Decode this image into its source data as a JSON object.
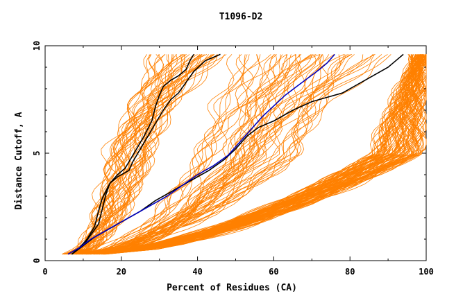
{
  "chart_data": {
    "type": "line",
    "title": "T1096-D2",
    "xlabel": "Percent of Residues (CA)",
    "ylabel": "Distance Cutoff, A",
    "xlim": [
      0,
      100
    ],
    "ylim": [
      0,
      10
    ],
    "x_ticks": [
      0,
      20,
      40,
      60,
      80,
      100
    ],
    "y_ticks": [
      0,
      5,
      10
    ],
    "grid": false,
    "legend": "none",
    "colors": {
      "models": "#ff8000",
      "highlight_black": "#000000",
      "highlight_blue": "#0000c0"
    },
    "highlighted_series": [
      {
        "color": "#000000",
        "points": [
          [
            7,
            0.3
          ],
          [
            9,
            0.6
          ],
          [
            11,
            1.0
          ],
          [
            13,
            1.6
          ],
          [
            14,
            2.3
          ],
          [
            15,
            2.9
          ],
          [
            17,
            3.6
          ],
          [
            19,
            4.0
          ],
          [
            21,
            4.3
          ],
          [
            22,
            4.6
          ],
          [
            24,
            5.2
          ],
          [
            26,
            5.8
          ],
          [
            28,
            6.5
          ],
          [
            29,
            7.2
          ],
          [
            30,
            7.7
          ],
          [
            31,
            8.1
          ],
          [
            33,
            8.4
          ],
          [
            35,
            8.6
          ],
          [
            37,
            8.9
          ],
          [
            38,
            9.3
          ],
          [
            39,
            9.6
          ]
        ]
      },
      {
        "color": "#000000",
        "points": [
          [
            7,
            0.3
          ],
          [
            10,
            0.7
          ],
          [
            12,
            1.2
          ],
          [
            14,
            1.7
          ],
          [
            15,
            2.4
          ],
          [
            16,
            3.1
          ],
          [
            17,
            3.6
          ],
          [
            19,
            3.9
          ],
          [
            21,
            4.1
          ],
          [
            22,
            4.2
          ],
          [
            23,
            4.6
          ],
          [
            25,
            5.2
          ],
          [
            27,
            5.8
          ],
          [
            29,
            6.4
          ],
          [
            31,
            7.0
          ],
          [
            33,
            7.5
          ],
          [
            35,
            7.8
          ],
          [
            37,
            8.3
          ],
          [
            39,
            8.8
          ],
          [
            42,
            9.3
          ],
          [
            46,
            9.6
          ]
        ]
      },
      {
        "color": "#000000",
        "points": [
          [
            7,
            0.3
          ],
          [
            10,
            0.7
          ],
          [
            13,
            1.1
          ],
          [
            17,
            1.5
          ],
          [
            21,
            1.9
          ],
          [
            25,
            2.3
          ],
          [
            29,
            2.8
          ],
          [
            33,
            3.2
          ],
          [
            38,
            3.7
          ],
          [
            43,
            4.2
          ],
          [
            47,
            4.7
          ],
          [
            50,
            5.2
          ],
          [
            53,
            5.8
          ],
          [
            56,
            6.2
          ],
          [
            60,
            6.5
          ],
          [
            65,
            7.0
          ],
          [
            70,
            7.4
          ],
          [
            74,
            7.6
          ],
          [
            78,
            7.8
          ],
          [
            82,
            8.2
          ],
          [
            86,
            8.6
          ],
          [
            90,
            9.0
          ],
          [
            92,
            9.3
          ],
          [
            94,
            9.6
          ]
        ]
      },
      {
        "color": "#0000c0",
        "points": [
          [
            6,
            0.3
          ],
          [
            9,
            0.6
          ],
          [
            12,
            1.0
          ],
          [
            16,
            1.4
          ],
          [
            20,
            1.8
          ],
          [
            24,
            2.2
          ],
          [
            28,
            2.6
          ],
          [
            32,
            3.0
          ],
          [
            36,
            3.5
          ],
          [
            40,
            4.0
          ],
          [
            44,
            4.4
          ],
          [
            48,
            4.9
          ],
          [
            51,
            5.5
          ],
          [
            54,
            6.1
          ],
          [
            57,
            6.7
          ],
          [
            60,
            7.2
          ],
          [
            63,
            7.7
          ],
          [
            66,
            8.1
          ],
          [
            69,
            8.5
          ],
          [
            72,
            8.9
          ],
          [
            74,
            9.2
          ],
          [
            76,
            9.6
          ]
        ]
      }
    ],
    "model_bundles": [
      {
        "name_hidden": true,
        "count": 45,
        "start": [
          4,
          8
        ],
        "mid5": [
          16,
          28
        ],
        "end": [
          28,
          48
        ],
        "lowcurve": 0.45
      },
      {
        "name_hidden": true,
        "count": 30,
        "start": [
          6,
          12
        ],
        "mid5": [
          40,
          58
        ],
        "end": [
          50,
          72
        ],
        "lowcurve": 0.5
      },
      {
        "name_hidden": true,
        "count": 25,
        "start": [
          6,
          12
        ],
        "mid5": [
          50,
          68
        ],
        "end": [
          70,
          92
        ],
        "lowcurve": 0.55
      },
      {
        "name_hidden": true,
        "count": 90,
        "start": [
          8,
          16
        ],
        "mid5": [
          86,
          99
        ],
        "end": [
          97,
          100
        ],
        "lowcurve": 0.62
      }
    ]
  }
}
